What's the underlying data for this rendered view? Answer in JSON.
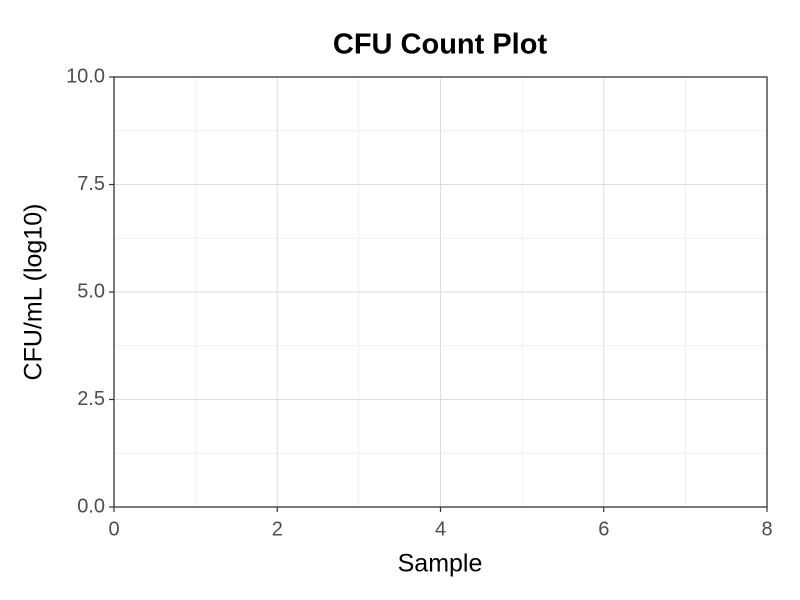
{
  "chart_data": {
    "type": "scatter",
    "title": "CFU Count Plot",
    "x_label": "Sample",
    "y_label": "CFU/mL (log10)",
    "xlim": [
      0,
      8
    ],
    "xticks": [
      0,
      2,
      4,
      6,
      8
    ],
    "ylim": [
      0,
      10
    ],
    "yticks": [
      {
        "value": 0,
        "label": "0.0"
      },
      2.5,
      {
        "value": 5,
        "label": "5.0"
      },
      7.5,
      {
        "value": 10,
        "label": "10.0"
      }
    ],
    "grid": true,
    "minor_grid": true
  }
}
